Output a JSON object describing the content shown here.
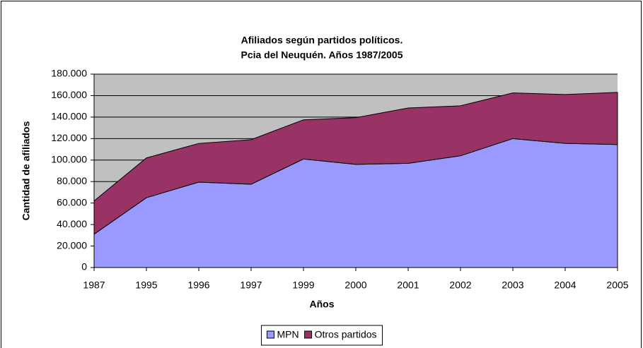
{
  "chart_data": {
    "type": "area",
    "stacked": true,
    "title": "Afiliados según partidos políticos.",
    "subtitle": "Pcia del Neuquén. Años 1987/2005",
    "x_label": "Años",
    "y_label": "Cantidad de afiliados",
    "categories": [
      "1987",
      "1995",
      "1996",
      "1997",
      "1999",
      "2000",
      "2001",
      "2002",
      "2003",
      "2004",
      "2005"
    ],
    "series": [
      {
        "name": "MPN",
        "color": "#9999ff",
        "values": [
          31000,
          65000,
          79500,
          77500,
          101000,
          96000,
          97000,
          104000,
          120000,
          115500,
          114500
        ]
      },
      {
        "name": "Otros partidos",
        "color": "#993366",
        "values": [
          31000,
          37000,
          36000,
          41500,
          36500,
          43500,
          51500,
          46500,
          42500,
          45500,
          48500
        ]
      }
    ],
    "ylim": [
      0,
      180000
    ],
    "yticks": [
      0,
      {
        "value": 20000,
        "label": "20.000"
      },
      {
        "value": 40000,
        "label": "40.000"
      },
      {
        "value": 60000,
        "label": "60.000"
      },
      {
        "value": 80000,
        "label": "80.000"
      },
      {
        "value": 100000,
        "label": "100.000"
      },
      {
        "value": 120000,
        "label": "120.000"
      },
      {
        "value": 140000,
        "label": "140.000"
      },
      {
        "value": 160000,
        "label": "160.000"
      },
      {
        "value": 180000,
        "label": "180.000"
      }
    ],
    "grid": true,
    "legend": "bottom",
    "plot_background": "#c0c0c0"
  }
}
